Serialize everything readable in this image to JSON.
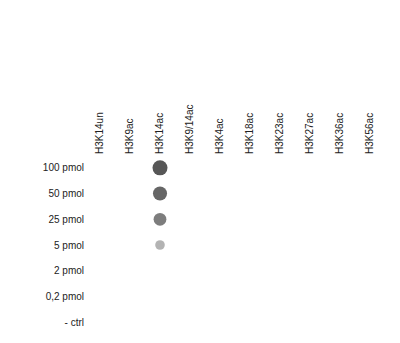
{
  "chart_data": {
    "type": "scatter",
    "categories": [
      "H3K14un",
      "H3K9ac",
      "H3K14ac",
      "H3K9/14ac",
      "H3K4ac",
      "H3K18ac",
      "H3K23ac",
      "H3K27ac",
      "H3K36ac",
      "H3K56ac"
    ],
    "rows": [
      "100 pmol",
      "50 pmol",
      "25 pmol",
      "5 pmol",
      "2 pmol",
      "0,2 pmol",
      "- ctrl"
    ],
    "cells": [
      [
        0,
        0,
        1,
        0,
        0,
        0,
        0,
        0,
        0,
        0
      ],
      [
        0,
        0,
        0.9,
        0,
        0,
        0,
        0,
        0,
        0,
        0
      ],
      [
        0,
        0,
        0.75,
        0,
        0,
        0,
        0,
        0,
        0,
        0
      ],
      [
        0,
        0,
        0.4,
        0,
        0,
        0,
        0,
        0,
        0,
        0
      ],
      [
        0,
        0,
        0,
        0,
        0,
        0,
        0,
        0,
        0,
        0
      ],
      [
        0,
        0,
        0,
        0,
        0,
        0,
        0,
        0,
        0,
        0
      ],
      [
        0,
        0,
        0,
        0,
        0,
        0,
        0,
        0,
        0,
        0
      ]
    ],
    "grid": false
  }
}
